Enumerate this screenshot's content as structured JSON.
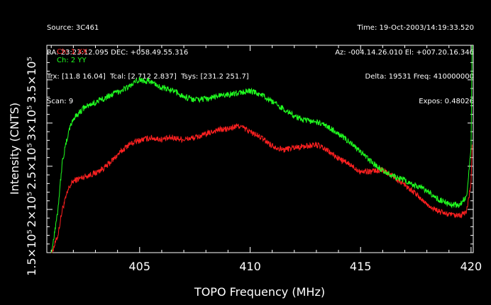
{
  "header": {
    "left": [
      "Source: 3C461",
      "RA: 23:23:12.095 DEC: +058.49.55.316",
      "Trx: [11.8 16.04]  Tcal: [2.712 2.837]  Tsys: [231.2 251.7]",
      "Scan: 9"
    ],
    "right": [
      "Time: 19-Oct-2003/14:19:33.520",
      "Az: -004.14.26.010 El: +007.20.16.346",
      "Delta: 19531 Freq: 410000000",
      "Expos: 0.48026"
    ]
  },
  "chart_data": {
    "type": "line",
    "xlabel": "TOPO Frequency (MHz)",
    "ylabel": "Intensity (CNTS)",
    "xlim": [
      400.8,
      420.1
    ],
    "ylim": [
      150000,
      390000
    ],
    "x_ticks": [
      405,
      410,
      415,
      420
    ],
    "x_tick_labels": [
      "405",
      "410",
      "415",
      "420"
    ],
    "y_ticks": [
      150000,
      200000,
      250000,
      300000,
      350000
    ],
    "y_tick_labels": [
      "1.5×10⁵",
      "2×10⁵",
      "2.5×10⁵",
      "3×10⁵",
      "3.5×10⁵"
    ],
    "series": [
      {
        "name": "Ch: 1 XX",
        "color": "#ff2020",
        "x": [
          401.0,
          401.3,
          401.5,
          401.8,
          402.0,
          402.5,
          403.0,
          403.5,
          404.0,
          404.5,
          405.0,
          405.5,
          406.0,
          406.5,
          407.0,
          407.5,
          408.0,
          408.5,
          409.0,
          409.5,
          410.0,
          410.5,
          411.0,
          411.5,
          412.0,
          412.5,
          413.0,
          413.5,
          414.0,
          414.5,
          415.0,
          415.5,
          416.0,
          416.5,
          417.0,
          417.5,
          418.0,
          418.5,
          419.0,
          419.5,
          419.8,
          420.0,
          420.05
        ],
        "y": [
          148000,
          170000,
          200000,
          225000,
          233000,
          238000,
          242000,
          250000,
          263000,
          275000,
          280000,
          283000,
          281000,
          283000,
          281000,
          283000,
          287000,
          292000,
          293000,
          297000,
          290000,
          283000,
          274000,
          269000,
          272000,
          273000,
          275000,
          268000,
          259000,
          252000,
          244000,
          244000,
          246000,
          238000,
          229000,
          218000,
          206000,
          198000,
          194000,
          192000,
          198000,
          230000,
          275000
        ]
      },
      {
        "name": "Ch: 2 YY",
        "color": "#20ff20",
        "x": [
          401.0,
          401.3,
          401.5,
          401.8,
          402.0,
          402.5,
          403.0,
          403.5,
          404.0,
          404.5,
          405.0,
          405.5,
          406.0,
          406.5,
          407.0,
          407.5,
          408.0,
          408.5,
          409.0,
          409.5,
          410.0,
          410.5,
          411.0,
          411.5,
          412.0,
          412.5,
          413.0,
          413.5,
          414.0,
          414.5,
          415.0,
          415.5,
          416.0,
          416.5,
          417.0,
          417.5,
          418.0,
          418.5,
          419.0,
          419.5,
          419.8,
          420.0,
          420.05
        ],
        "y": [
          148000,
          200000,
          255000,
          292000,
          305000,
          318000,
          324000,
          330000,
          336000,
          342000,
          350000,
          348000,
          341000,
          337000,
          331000,
          327000,
          328000,
          331000,
          333000,
          335000,
          337000,
          333000,
          324000,
          317000,
          308000,
          303000,
          301000,
          296000,
          288000,
          278000,
          266000,
          255000,
          245000,
          238000,
          234000,
          228000,
          222000,
          212000,
          206000,
          205000,
          216000,
          270000,
          395000
        ]
      }
    ],
    "grid": false,
    "legend": "top-left"
  }
}
